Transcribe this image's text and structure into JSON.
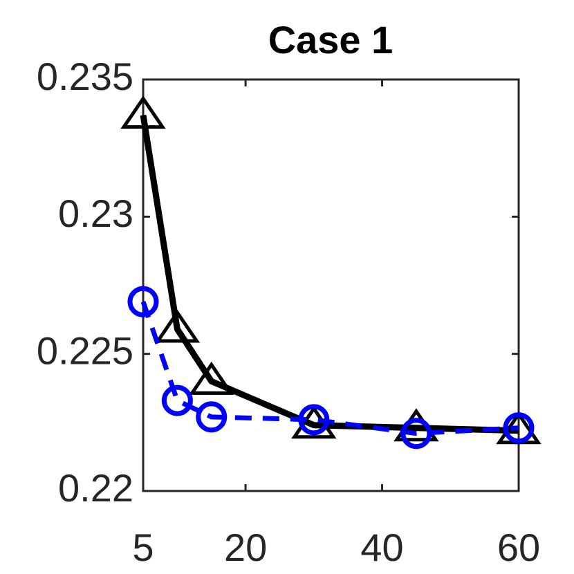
{
  "chart_data": {
    "type": "line",
    "title": "Case 1",
    "x": [
      5,
      10,
      15,
      30,
      45,
      60
    ],
    "series": [
      {
        "color": "#000000",
        "marker": "triangle",
        "dashed": false,
        "values": [
          0.2337,
          0.2259,
          0.224,
          0.2224,
          0.2223,
          0.2222
        ]
      },
      {
        "color": "#0000ff",
        "marker": "circle",
        "dashed": true,
        "values": [
          0.2269,
          0.2233,
          0.2227,
          0.2226,
          0.2221,
          0.2223
        ]
      }
    ],
    "xlim": [
      5,
      60
    ],
    "xticks": [
      5,
      20,
      40,
      60
    ],
    "ylim": [
      0.22,
      0.235
    ],
    "yticks": [
      0.22,
      0.225,
      0.23,
      0.235
    ],
    "grid": false
  }
}
